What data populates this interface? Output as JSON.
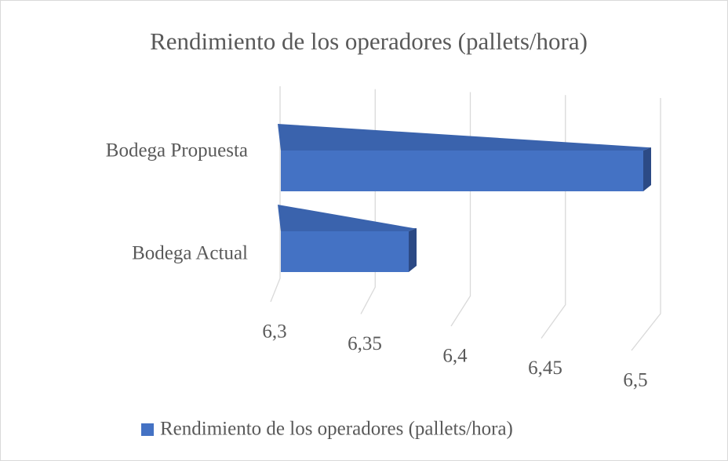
{
  "chart_data": {
    "type": "bar3d_horizontal",
    "title": "Rendimiento de los operadores (pallets/hora)",
    "categories": [
      "Bodega Actual",
      "Bodega Propuesta"
    ],
    "series": [
      {
        "name": "Rendimiento de los operadores (pallets/hora)",
        "color": "#4472c4",
        "values": [
          6.37,
          6.5
        ]
      }
    ],
    "xlim": [
      6.3,
      6.5
    ],
    "xticks": [
      {
        "value": 6.3,
        "label": "6,3"
      },
      {
        "value": 6.35,
        "label": "6,35"
      },
      {
        "value": 6.4,
        "label": "6,4"
      },
      {
        "value": 6.45,
        "label": "6,45"
      },
      {
        "value": 6.5,
        "label": "6,5"
      }
    ],
    "grid": true,
    "legend": "bottom"
  }
}
